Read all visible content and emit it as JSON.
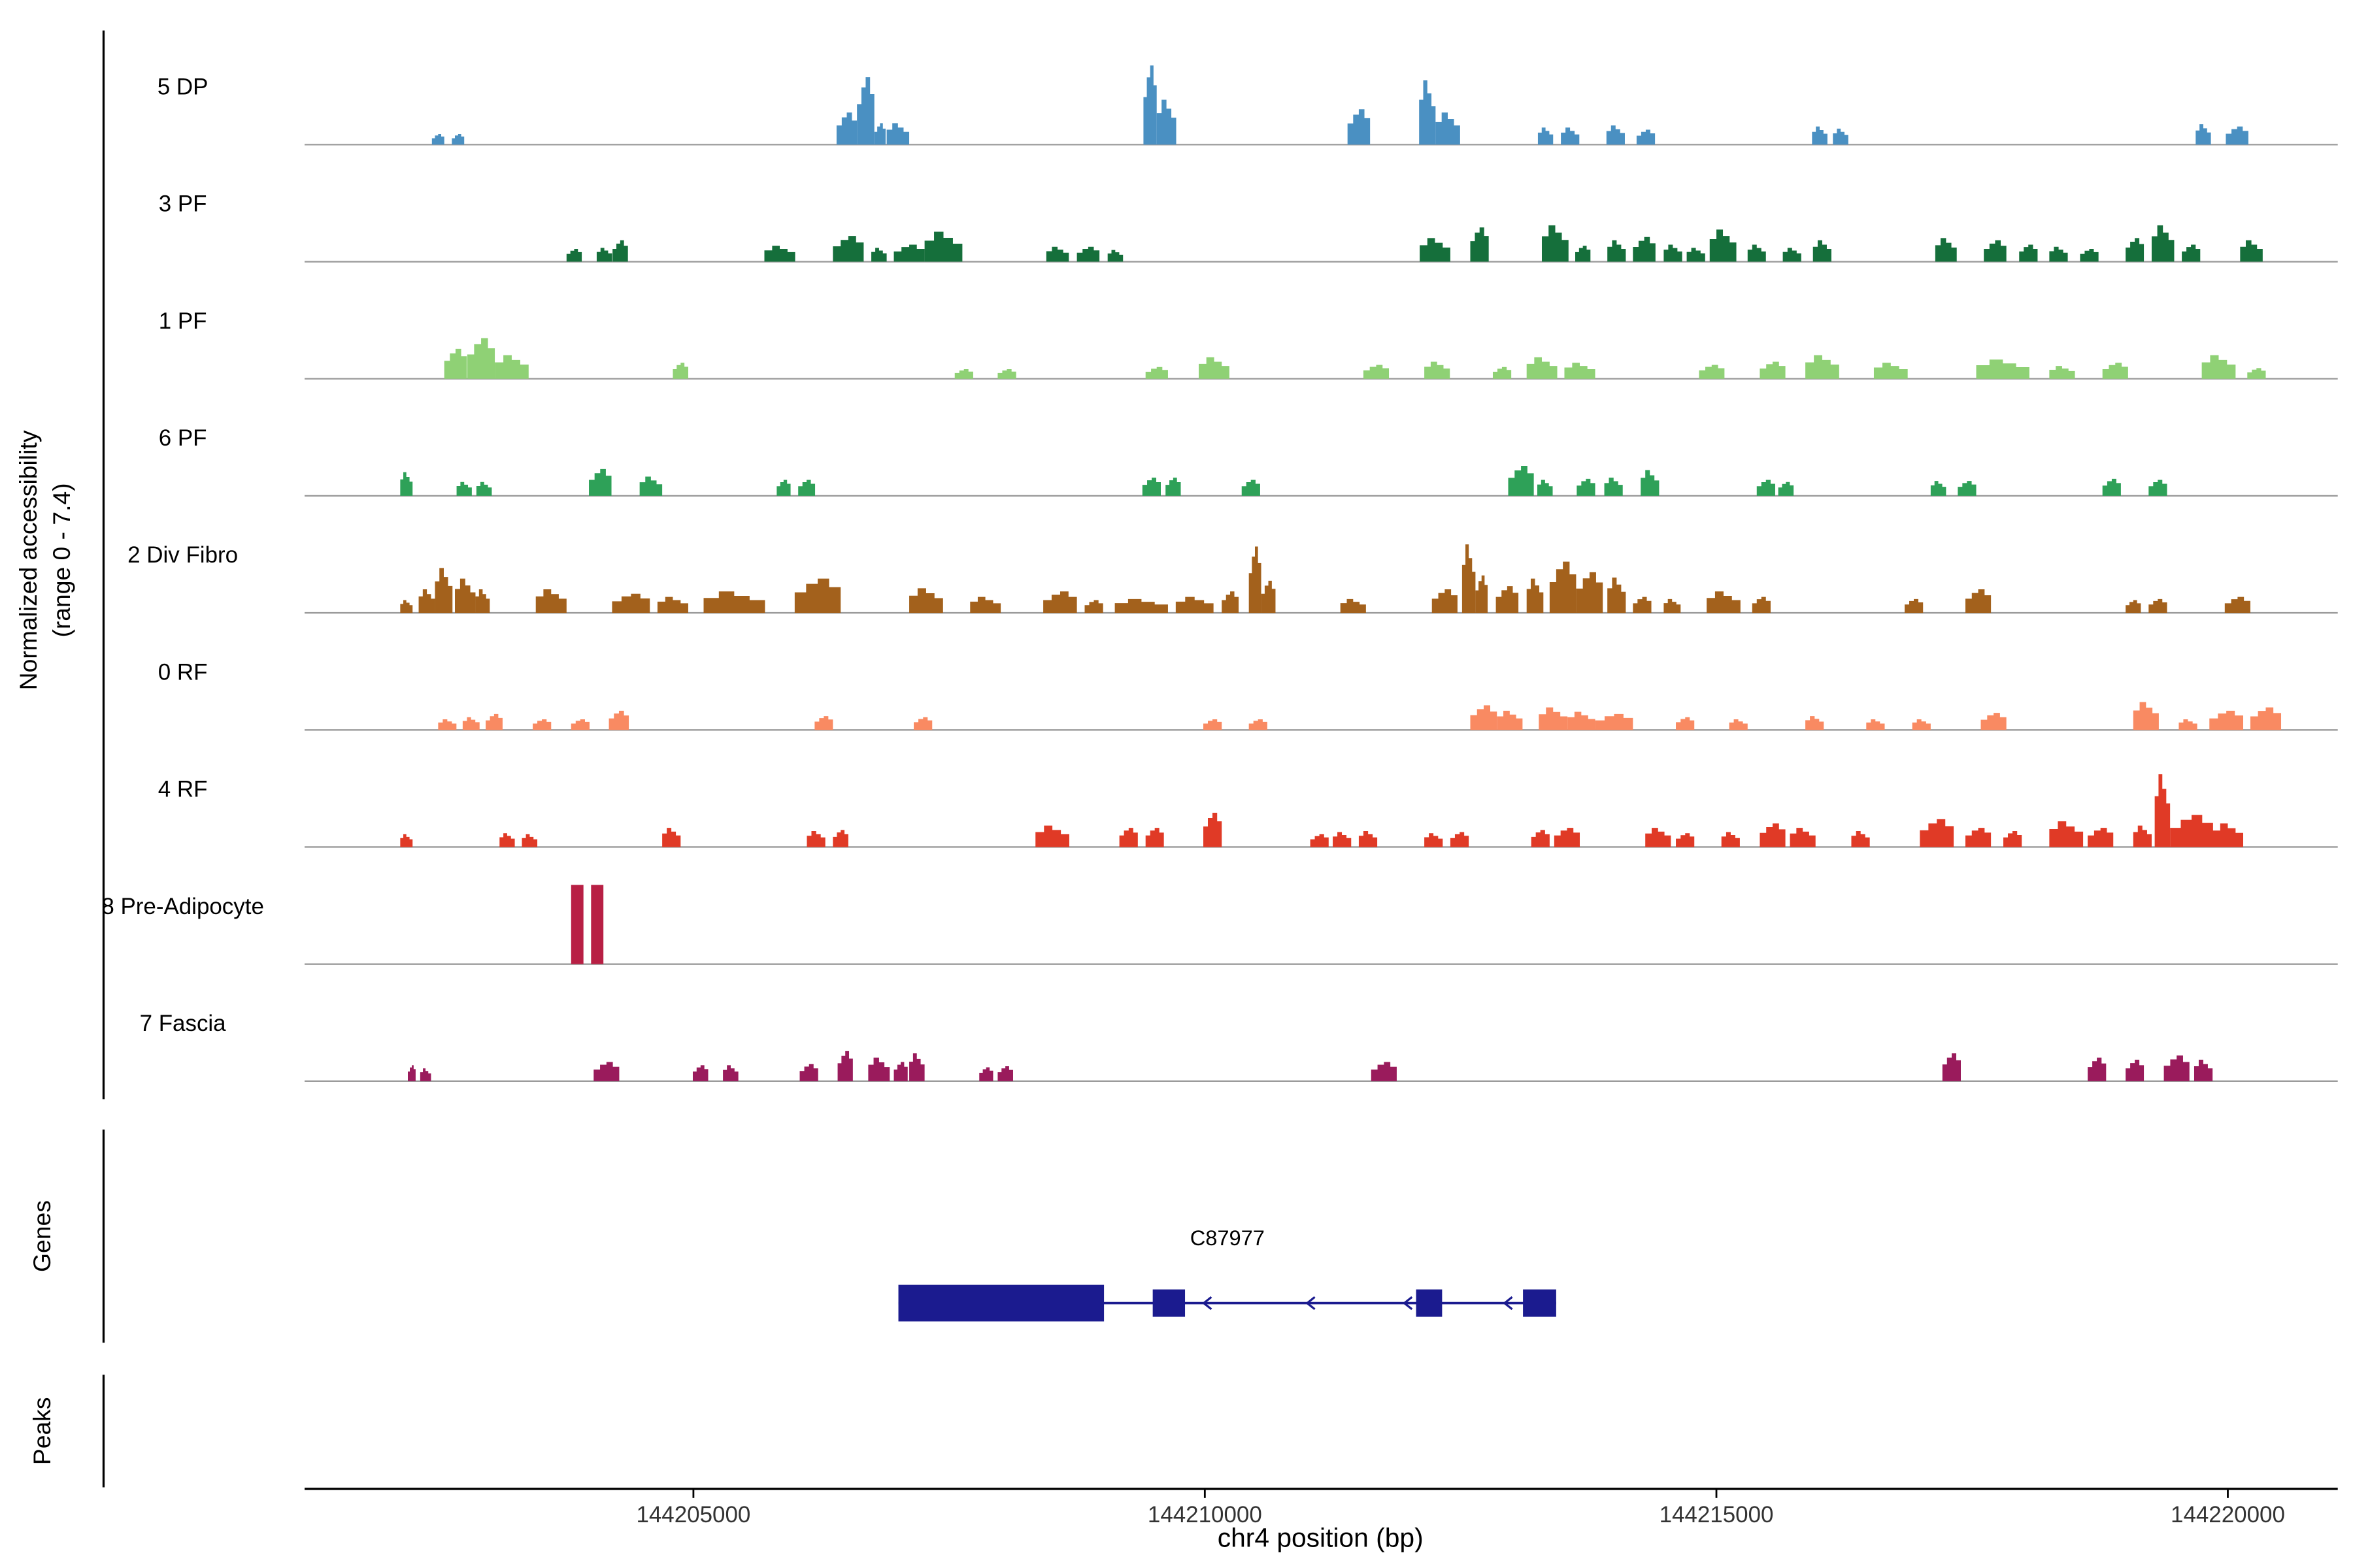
{
  "figure": {
    "y_axis_label_line1": "Normalized accessibility",
    "y_axis_label_line2": "(range 0 - 7.4)",
    "genes_section_label": "Genes",
    "peaks_section_label": "Peaks",
    "x_axis_label": "chr4 position (bp)"
  },
  "chart_data": {
    "type": "area",
    "title": "",
    "xlabel": "chr4 position (bp)",
    "ylabel": "Normalized accessibility (range 0 - 7.4)",
    "xlim": [
      144201200,
      144221000
    ],
    "x_ticks": [
      144205000,
      144210000,
      144215000,
      144220000
    ],
    "track_range": [
      0,
      7.4
    ],
    "grid": false,
    "legend": "none",
    "tracks": [
      {
        "name": "5 DP",
        "color": "#4a90c2",
        "peaks": [
          [
            144202445,
            120,
            1.0
          ],
          [
            144202640,
            120,
            1.0
          ],
          [
            144206400,
            200,
            3.0
          ],
          [
            144206600,
            170,
            6.3
          ],
          [
            144206770,
            110,
            2.0
          ],
          [
            144206890,
            220,
            2.0
          ],
          [
            144209400,
            130,
            7.4
          ],
          [
            144209530,
            190,
            4.2
          ],
          [
            144211395,
            220,
            3.3
          ],
          [
            144212095,
            160,
            6.0
          ],
          [
            144212255,
            240,
            3.0
          ],
          [
            144213255,
            150,
            1.6
          ],
          [
            144213480,
            180,
            1.6
          ],
          [
            144213925,
            180,
            1.8
          ],
          [
            144214220,
            180,
            1.4
          ],
          [
            144215935,
            150,
            1.7
          ],
          [
            144216140,
            150,
            1.5
          ],
          [
            144219685,
            150,
            1.9
          ],
          [
            144219980,
            220,
            1.7
          ]
        ]
      },
      {
        "name": "3 PF",
        "color": "#156f3b",
        "peaks": [
          [
            144203760,
            150,
            1.2
          ],
          [
            144204055,
            150,
            1.3
          ],
          [
            144204210,
            150,
            2.0
          ],
          [
            144205695,
            300,
            1.5
          ],
          [
            144206365,
            300,
            2.4
          ],
          [
            144206740,
            150,
            1.3
          ],
          [
            144206960,
            300,
            1.6
          ],
          [
            144207260,
            370,
            2.8
          ],
          [
            144208450,
            220,
            1.4
          ],
          [
            144208750,
            220,
            1.4
          ],
          [
            144209050,
            150,
            1.1
          ],
          [
            144212100,
            300,
            2.2
          ],
          [
            144212595,
            180,
            3.2
          ],
          [
            144213295,
            260,
            3.4
          ],
          [
            144213620,
            150,
            1.5
          ],
          [
            144213935,
            180,
            2.0
          ],
          [
            144214185,
            220,
            2.3
          ],
          [
            144214485,
            180,
            1.6
          ],
          [
            144214710,
            180,
            1.3
          ],
          [
            144214935,
            260,
            3.0
          ],
          [
            144215305,
            180,
            1.6
          ],
          [
            144215650,
            180,
            1.3
          ],
          [
            144215945,
            180,
            2.0
          ],
          [
            144217140,
            210,
            2.2
          ],
          [
            144217615,
            220,
            2.0
          ],
          [
            144217960,
            180,
            1.6
          ],
          [
            144218255,
            180,
            1.4
          ],
          [
            144218555,
            180,
            1.2
          ],
          [
            144219000,
            180,
            2.2
          ],
          [
            144219255,
            220,
            3.4
          ],
          [
            144219550,
            180,
            1.6
          ],
          [
            144220120,
            220,
            2.0
          ]
        ]
      },
      {
        "name": "1 PF",
        "color": "#8fd175",
        "peaks": [
          [
            144202565,
            220,
            2.8
          ],
          [
            144202790,
            270,
            3.8
          ],
          [
            144203060,
            330,
            2.2
          ],
          [
            144204800,
            150,
            1.5
          ],
          [
            144207555,
            180,
            0.9
          ],
          [
            144207975,
            180,
            0.9
          ],
          [
            144209420,
            220,
            1.1
          ],
          [
            144209940,
            300,
            2.0
          ],
          [
            144211550,
            250,
            1.3
          ],
          [
            144212145,
            250,
            1.6
          ],
          [
            144212815,
            180,
            1.1
          ],
          [
            144213145,
            300,
            2.0
          ],
          [
            144213515,
            300,
            1.5
          ],
          [
            144214830,
            250,
            1.3
          ],
          [
            144215425,
            250,
            1.6
          ],
          [
            144215870,
            330,
            2.2
          ],
          [
            144216540,
            330,
            1.5
          ],
          [
            144217540,
            520,
            1.8
          ],
          [
            144218255,
            250,
            1.2
          ],
          [
            144218775,
            250,
            1.5
          ],
          [
            144219745,
            330,
            2.2
          ],
          [
            144220190,
            180,
            1.0
          ]
        ]
      },
      {
        "name": "6 PF",
        "color": "#2ea158",
        "peaks": [
          [
            144202135,
            120,
            2.2
          ],
          [
            144202685,
            150,
            1.3
          ],
          [
            144202880,
            150,
            1.3
          ],
          [
            144203980,
            220,
            2.5
          ],
          [
            144204475,
            220,
            1.8
          ],
          [
            144205815,
            135,
            1.5
          ],
          [
            144206025,
            165,
            1.5
          ],
          [
            144209390,
            180,
            1.7
          ],
          [
            144209615,
            150,
            1.7
          ],
          [
            144210360,
            180,
            1.5
          ],
          [
            144212965,
            250,
            2.8
          ],
          [
            144213250,
            150,
            1.5
          ],
          [
            144213635,
            180,
            1.6
          ],
          [
            144213905,
            180,
            1.7
          ],
          [
            144214260,
            180,
            2.4
          ],
          [
            144215395,
            180,
            1.5
          ],
          [
            144215605,
            150,
            1.3
          ],
          [
            144217095,
            150,
            1.4
          ],
          [
            144217360,
            180,
            1.4
          ],
          [
            144218775,
            180,
            1.6
          ],
          [
            144219225,
            180,
            1.5
          ]
        ]
      },
      {
        "name": "2 Div Fibro",
        "color": "#a3611c",
        "peaks": [
          [
            144202135,
            120,
            1.2
          ],
          [
            144202315,
            160,
            2.2
          ],
          [
            144202475,
            170,
            4.2
          ],
          [
            144202670,
            200,
            3.2
          ],
          [
            144202870,
            140,
            2.2
          ],
          [
            144203460,
            300,
            2.2
          ],
          [
            144204205,
            370,
            1.8
          ],
          [
            144204650,
            300,
            1.5
          ],
          [
            144205100,
            600,
            2.0
          ],
          [
            144205990,
            450,
            3.2
          ],
          [
            144207110,
            330,
            2.3
          ],
          [
            144207705,
            300,
            1.5
          ],
          [
            144208420,
            330,
            2.0
          ],
          [
            144208825,
            180,
            1.2
          ],
          [
            144209120,
            520,
            1.3
          ],
          [
            144209715,
            370,
            1.5
          ],
          [
            144210165,
            165,
            2.0
          ],
          [
            144210430,
            120,
            6.2
          ],
          [
            144210550,
            140,
            3.0
          ],
          [
            144211325,
            250,
            1.3
          ],
          [
            144212220,
            250,
            2.2
          ],
          [
            144212515,
            130,
            6.4
          ],
          [
            144212645,
            120,
            3.5
          ],
          [
            144212845,
            220,
            2.5
          ],
          [
            144213145,
            165,
            3.2
          ],
          [
            144213370,
            260,
            4.8
          ],
          [
            144213630,
            260,
            3.8
          ],
          [
            144213935,
            180,
            3.3
          ],
          [
            144214185,
            180,
            1.5
          ],
          [
            144214485,
            165,
            1.3
          ],
          [
            144214905,
            330,
            2.0
          ],
          [
            144215350,
            180,
            1.5
          ],
          [
            144216840,
            180,
            1.3
          ],
          [
            144217435,
            250,
            2.2
          ],
          [
            144219000,
            150,
            1.2
          ],
          [
            144219225,
            180,
            1.3
          ],
          [
            144219970,
            250,
            1.5
          ]
        ]
      },
      {
        "name": "0 RF",
        "color": "#f98a62",
        "peaks": [
          [
            144202505,
            180,
            1.0
          ],
          [
            144202745,
            165,
            1.2
          ],
          [
            144202970,
            165,
            1.5
          ],
          [
            144203430,
            180,
            1.0
          ],
          [
            144203805,
            180,
            1.0
          ],
          [
            144204175,
            195,
            1.8
          ],
          [
            144206185,
            180,
            1.3
          ],
          [
            144207155,
            180,
            1.2
          ],
          [
            144209985,
            180,
            1.0
          ],
          [
            144210430,
            180,
            1.0
          ],
          [
            144212595,
            260,
            2.3
          ],
          [
            144212855,
            250,
            1.8
          ],
          [
            144213265,
            280,
            2.1
          ],
          [
            144213545,
            270,
            1.7
          ],
          [
            144213815,
            370,
            1.5
          ],
          [
            144214605,
            180,
            1.2
          ],
          [
            144215125,
            180,
            1.0
          ],
          [
            144215870,
            180,
            1.3
          ],
          [
            144216465,
            180,
            1.0
          ],
          [
            144216915,
            180,
            1.0
          ],
          [
            144217585,
            250,
            1.6
          ],
          [
            144219075,
            250,
            2.6
          ],
          [
            144219520,
            180,
            1.0
          ],
          [
            144219820,
            330,
            1.8
          ],
          [
            144220220,
            300,
            2.1
          ]
        ]
      },
      {
        "name": "4 RF",
        "color": "#e03a26",
        "peaks": [
          [
            144202135,
            120,
            1.2
          ],
          [
            144203105,
            150,
            1.3
          ],
          [
            144203325,
            150,
            1.2
          ],
          [
            144204695,
            180,
            1.8
          ],
          [
            144206110,
            180,
            1.5
          ],
          [
            144206365,
            150,
            1.6
          ],
          [
            144208345,
            330,
            2.0
          ],
          [
            144209165,
            180,
            1.8
          ],
          [
            144209420,
            180,
            1.8
          ],
          [
            144209985,
            180,
            3.2
          ],
          [
            144211030,
            180,
            1.2
          ],
          [
            144211250,
            180,
            1.4
          ],
          [
            144211505,
            180,
            1.5
          ],
          [
            144212145,
            180,
            1.3
          ],
          [
            144212400,
            180,
            1.4
          ],
          [
            144213190,
            180,
            1.6
          ],
          [
            144213415,
            250,
            1.8
          ],
          [
            144214305,
            250,
            1.8
          ],
          [
            144214605,
            180,
            1.3
          ],
          [
            144215050,
            180,
            1.4
          ],
          [
            144215425,
            250,
            2.2
          ],
          [
            144215720,
            250,
            1.8
          ],
          [
            144216320,
            180,
            1.5
          ],
          [
            144216990,
            330,
            2.6
          ],
          [
            144217435,
            250,
            1.8
          ],
          [
            144217805,
            180,
            1.5
          ],
          [
            144218255,
            330,
            2.4
          ],
          [
            144218630,
            250,
            1.8
          ],
          [
            144219075,
            180,
            2.0
          ],
          [
            144219285,
            150,
            6.8
          ],
          [
            144219435,
            420,
            3.0
          ],
          [
            144219850,
            300,
            2.2
          ]
        ]
      },
      {
        "name": "8 Pre-Adipocyte",
        "color": "#b81f44",
        "peaks": [
          [
            144203805,
            120,
            7.4,
            1
          ],
          [
            144204000,
            120,
            7.4,
            1
          ]
        ]
      },
      {
        "name": "7 Fascia",
        "color": "#9a1b5c",
        "peaks": [
          [
            144202210,
            75,
            1.5
          ],
          [
            144202330,
            105,
            1.2
          ],
          [
            144204025,
            250,
            1.8
          ],
          [
            144204995,
            150,
            1.5
          ],
          [
            144205290,
            150,
            1.5
          ],
          [
            144206040,
            180,
            1.6
          ],
          [
            144206410,
            150,
            2.8
          ],
          [
            144206710,
            210,
            2.2
          ],
          [
            144206960,
            135,
            1.8
          ],
          [
            144207110,
            150,
            2.6
          ],
          [
            144207795,
            135,
            1.3
          ],
          [
            144207975,
            150,
            1.4
          ],
          [
            144211625,
            250,
            1.8
          ],
          [
            144217210,
            180,
            2.6
          ],
          [
            144218630,
            180,
            2.2
          ],
          [
            144219000,
            180,
            2.0
          ],
          [
            144219375,
            250,
            2.4
          ],
          [
            144219670,
            180,
            2.0
          ]
        ]
      }
    ],
    "gene": {
      "name": "C87977",
      "strand": "-",
      "color": "#1b1b8f",
      "start": 144207005,
      "end": 144213435,
      "exons": [
        [
          144207005,
          144209015,
          1
        ],
        [
          144209490,
          144209805,
          0
        ],
        [
          144212065,
          144212320,
          0
        ],
        [
          144213110,
          144213435,
          0
        ]
      ],
      "arrow_positions_bp": [
        144209990,
        144211000,
        144211950,
        144212930
      ]
    },
    "peaks_track": {
      "label": "Peaks",
      "items": []
    }
  }
}
